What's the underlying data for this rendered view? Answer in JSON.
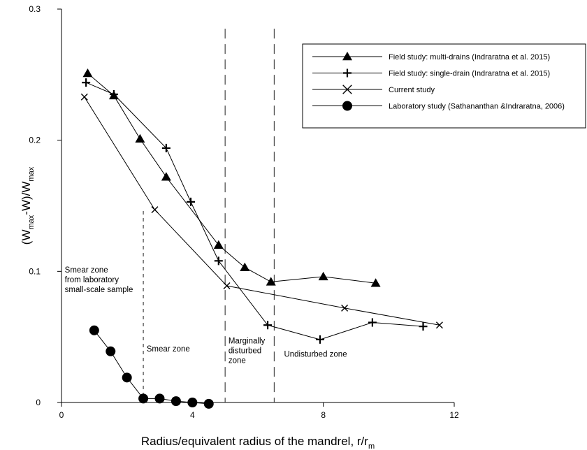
{
  "chart_data": {
    "type": "scatter",
    "xlabel": "Radius/equivalent radius of the mandrel, r/r",
    "xlabel_sub": "m",
    "ylabel_parts": [
      "(W",
      "max",
      "-W)/W",
      "max"
    ],
    "xlim": [
      0,
      12
    ],
    "ylim": [
      0,
      0.3
    ],
    "xticks": [
      0,
      4,
      8,
      12
    ],
    "xtick_labels": [
      "0",
      "4",
      "8",
      "12"
    ],
    "yticks": [
      0,
      0.1,
      0.2,
      0.3
    ],
    "ytick_labels": [
      "0",
      "0.1",
      "0.2",
      "0.3"
    ],
    "grid": false,
    "legend_position": "top-right",
    "series": [
      {
        "name": "Field study: multi-drains (Indraratna et al. 2015)",
        "marker": "triangle",
        "x": [
          0.8,
          1.6,
          2.4,
          3.2,
          4.8,
          5.6,
          6.4,
          8.0,
          9.6
        ],
        "y": [
          0.251,
          0.234,
          0.201,
          0.172,
          0.12,
          0.103,
          0.092,
          0.096,
          0.091
        ]
      },
      {
        "name": "Field study: single-drain (Indraratna et al. 2015)",
        "marker": "plus",
        "x": [
          0.75,
          1.6,
          3.2,
          3.95,
          4.8,
          6.3,
          7.9,
          9.5,
          11.05
        ],
        "y": [
          0.244,
          0.235,
          0.194,
          0.153,
          0.108,
          0.059,
          0.048,
          0.061,
          0.058
        ]
      },
      {
        "name": "Current study",
        "marker": "x",
        "x": [
          0.7,
          2.85,
          5.05,
          8.65,
          11.55
        ],
        "y": [
          0.233,
          0.147,
          0.089,
          0.072,
          0.059
        ]
      },
      {
        "name": "Laboratory study (Sathananthan &Indraratna, 2006)",
        "marker": "circle",
        "x": [
          1.0,
          1.5,
          2.0,
          2.5,
          3.0,
          3.5,
          4.0,
          4.5
        ],
        "y": [
          0.055,
          0.039,
          0.019,
          0.003,
          0.003,
          0.001,
          0.0,
          -0.001
        ]
      }
    ],
    "reference_lines": [
      {
        "x": 2.5,
        "style": "short-dash",
        "y_top": 0.146
      },
      {
        "x": 5.0,
        "style": "long-dash",
        "y_top": 0.285
      },
      {
        "x": 6.5,
        "style": "long-dash",
        "y_top": 0.285
      }
    ],
    "annotations": [
      {
        "lines": [
          "Smear zone",
          "from laboratory",
          "small-scale sample"
        ],
        "x": 0.1,
        "y": 0.099
      },
      {
        "lines": [
          "Smear zone"
        ],
        "x": 2.6,
        "y": 0.039
      },
      {
        "lines": [
          "Marginally",
          "disturbed",
          "zone"
        ],
        "x": 5.1,
        "y": 0.045
      },
      {
        "lines": [
          "Undisturbed zone"
        ],
        "x": 6.8,
        "y": 0.035
      }
    ]
  }
}
